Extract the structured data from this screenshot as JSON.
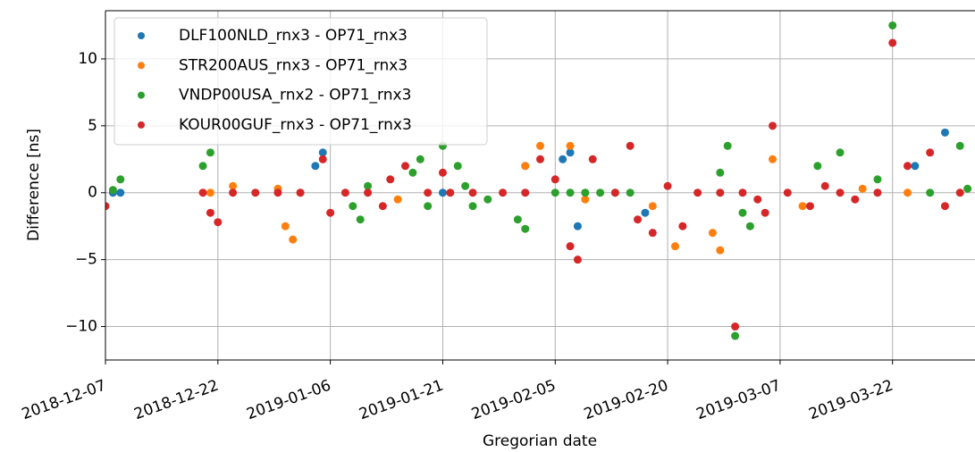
{
  "chart_data": {
    "type": "scatter",
    "x_label": "Gregorian date",
    "y_label": "Difference [ns]",
    "xlim": [
      "2018-12-07",
      "2019-04-02"
    ],
    "xticks": [
      "2018-12-07",
      "2018-12-22",
      "2019-01-06",
      "2019-01-21",
      "2019-02-05",
      "2019-02-20",
      "2019-03-07",
      "2019-03-22"
    ],
    "ylim": [
      -12.5,
      13.6
    ],
    "yticks": [
      {
        "value": -10,
        "label": "−10"
      },
      {
        "value": -5,
        "label": "−5"
      },
      0,
      5,
      10
    ],
    "grid": true,
    "legend": "upper left",
    "series": [
      {
        "name": "DLF100NLD_rnx3 - OP71_rnx3",
        "color": "#1f77b4",
        "x": [
          "2018-12-08",
          "2018-12-09",
          "2019-01-04",
          "2019-01-05",
          "2019-01-21",
          "2019-02-01",
          "2019-02-06",
          "2019-02-07",
          "2019-02-08",
          "2019-02-17",
          "2019-03-25",
          "2019-03-29"
        ],
        "values": [
          0,
          0,
          2,
          3,
          0,
          2,
          2.5,
          3,
          -2.5,
          -1.5,
          2,
          4.5
        ]
      },
      {
        "name": "STR200AUS_rnx3 - OP71_rnx3",
        "color": "#ff7f0e",
        "x": [
          "2018-12-21",
          "2018-12-24",
          "2018-12-30",
          "2018-12-31",
          "2019-01-01",
          "2019-01-02",
          "2019-01-15",
          "2019-02-01",
          "2019-02-03",
          "2019-02-07",
          "2019-02-09",
          "2019-02-18",
          "2019-02-21",
          "2019-02-26",
          "2019-02-27",
          "2019-03-06",
          "2019-03-10",
          "2019-03-18",
          "2019-03-24"
        ],
        "values": [
          0,
          0.5,
          0.3,
          -2.5,
          -3.5,
          0,
          -0.5,
          2,
          3.5,
          3.5,
          -0.5,
          -1,
          -4,
          -3,
          -4.3,
          2.5,
          -1,
          0.3,
          0
        ]
      },
      {
        "name": "VNDP00USA_rnx2 - OP71_rnx3",
        "color": "#2ca02c",
        "x": [
          "2018-12-08",
          "2018-12-09",
          "2018-12-20",
          "2018-12-21",
          "2019-01-09",
          "2019-01-10",
          "2019-01-11",
          "2019-01-17",
          "2019-01-18",
          "2019-01-19",
          "2019-01-21",
          "2019-01-23",
          "2019-01-24",
          "2019-01-25",
          "2019-01-27",
          "2019-01-31",
          "2019-02-01",
          "2019-02-05",
          "2019-02-07",
          "2019-02-09",
          "2019-02-11",
          "2019-02-13",
          "2019-02-15",
          "2019-02-27",
          "2019-02-28",
          "2019-03-01",
          "2019-03-02",
          "2019-03-03",
          "2019-03-12",
          "2019-03-15",
          "2019-03-20",
          "2019-03-22",
          "2019-03-27",
          "2019-03-31",
          "2019-04-01"
        ],
        "values": [
          0.2,
          1,
          2,
          3,
          -1,
          -2,
          0.5,
          1.5,
          2.5,
          -1,
          3.5,
          2,
          0.5,
          -1,
          -0.5,
          -2,
          -2.7,
          0,
          0,
          0,
          0,
          0,
          0,
          1.5,
          3.5,
          -10.7,
          -1.5,
          -2.5,
          2,
          3,
          1,
          12.5,
          0,
          3.5,
          0.3
        ]
      },
      {
        "name": "KOUR00GUF_rnx3 - OP71_rnx3",
        "color": "#d62728",
        "x": [
          "2018-12-07",
          "2018-12-20",
          "2018-12-21",
          "2018-12-22",
          "2018-12-24",
          "2018-12-27",
          "2018-12-30",
          "2019-01-02",
          "2019-01-05",
          "2019-01-06",
          "2019-01-08",
          "2019-01-11",
          "2019-01-13",
          "2019-01-14",
          "2019-01-16",
          "2019-01-19",
          "2019-01-21",
          "2019-01-22",
          "2019-01-25",
          "2019-01-29",
          "2019-02-01",
          "2019-02-03",
          "2019-02-05",
          "2019-02-07",
          "2019-02-08",
          "2019-02-10",
          "2019-02-13",
          "2019-02-15",
          "2019-02-16",
          "2019-02-18",
          "2019-02-20",
          "2019-02-22",
          "2019-02-24",
          "2019-02-27",
          "2019-03-01",
          "2019-03-02",
          "2019-03-04",
          "2019-03-05",
          "2019-03-06",
          "2019-03-08",
          "2019-03-11",
          "2019-03-13",
          "2019-03-15",
          "2019-03-17",
          "2019-03-20",
          "2019-03-22",
          "2019-03-24",
          "2019-03-27",
          "2019-03-29",
          "2019-03-31"
        ],
        "values": [
          -1,
          0,
          -1.5,
          -2.2,
          0,
          0,
          0,
          0,
          2.5,
          -1.5,
          0,
          0,
          -1,
          1,
          2,
          0,
          1.5,
          0,
          0,
          0,
          0,
          2.5,
          1,
          -4,
          -5,
          2.5,
          0,
          3.5,
          -2,
          -3,
          0.5,
          -2.5,
          0,
          0,
          -10,
          0,
          -0.5,
          -1.5,
          5,
          0,
          -1,
          0.5,
          0,
          -0.5,
          0,
          11.2,
          2,
          3,
          -1,
          0
        ]
      }
    ]
  }
}
